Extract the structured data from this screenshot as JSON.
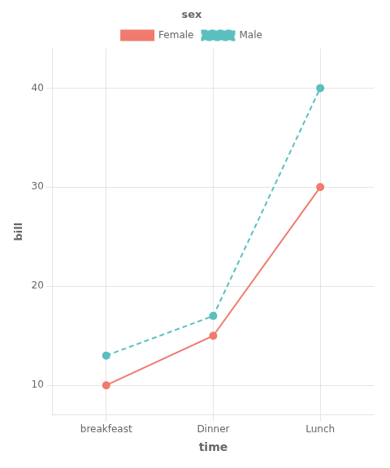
{
  "chart_data": {
    "type": "line",
    "xlabel": "time",
    "ylabel": "bill",
    "categories": [
      "breakfeast",
      "Dinner",
      "Lunch"
    ],
    "series": [
      {
        "name": "Female",
        "color": "#F07B6E",
        "line_style": "solid",
        "marker": "circle",
        "values": [
          10,
          15,
          30
        ]
      },
      {
        "name": "Male",
        "color": "#5BBFBF",
        "line_style": "dashed",
        "marker": "circle",
        "values": [
          13,
          17,
          40
        ]
      }
    ],
    "ylim": [
      7,
      44
    ],
    "yticks": [
      10,
      20,
      30,
      40
    ],
    "grid": true,
    "legend": "top",
    "legend_title": "sex"
  }
}
